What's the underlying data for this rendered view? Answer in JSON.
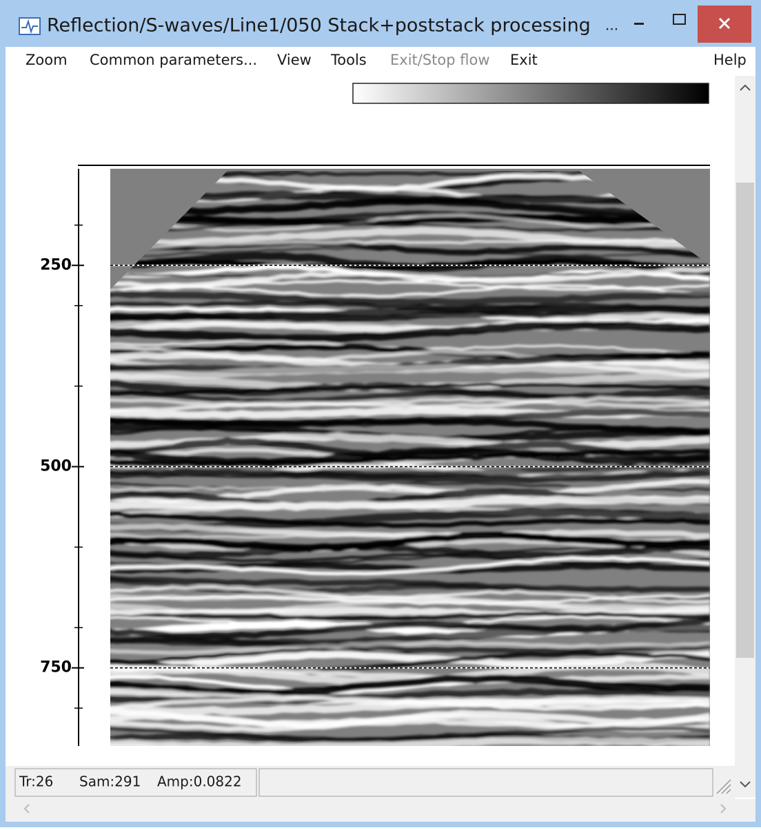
{
  "window": {
    "title": "Reflection/S-waves/Line1/050 Stack+poststack processing",
    "title_extra": "..."
  },
  "menu": [
    {
      "label": "Zoom"
    },
    {
      "label": "Common parameters..."
    },
    {
      "label": "View"
    },
    {
      "label": "Tools"
    },
    {
      "label": "Exit/Stop flow",
      "enabled": false
    },
    {
      "label": "Exit"
    },
    {
      "label": "Help"
    }
  ],
  "axis": {
    "ylim": [
      130,
      847
    ],
    "ticks": [
      250,
      500,
      750
    ],
    "minor_ticks": [
      200,
      300,
      400,
      600,
      700,
      800
    ]
  },
  "status": [
    "Tr:26",
    "Sam:291",
    "Amp:0.0822"
  ]
}
